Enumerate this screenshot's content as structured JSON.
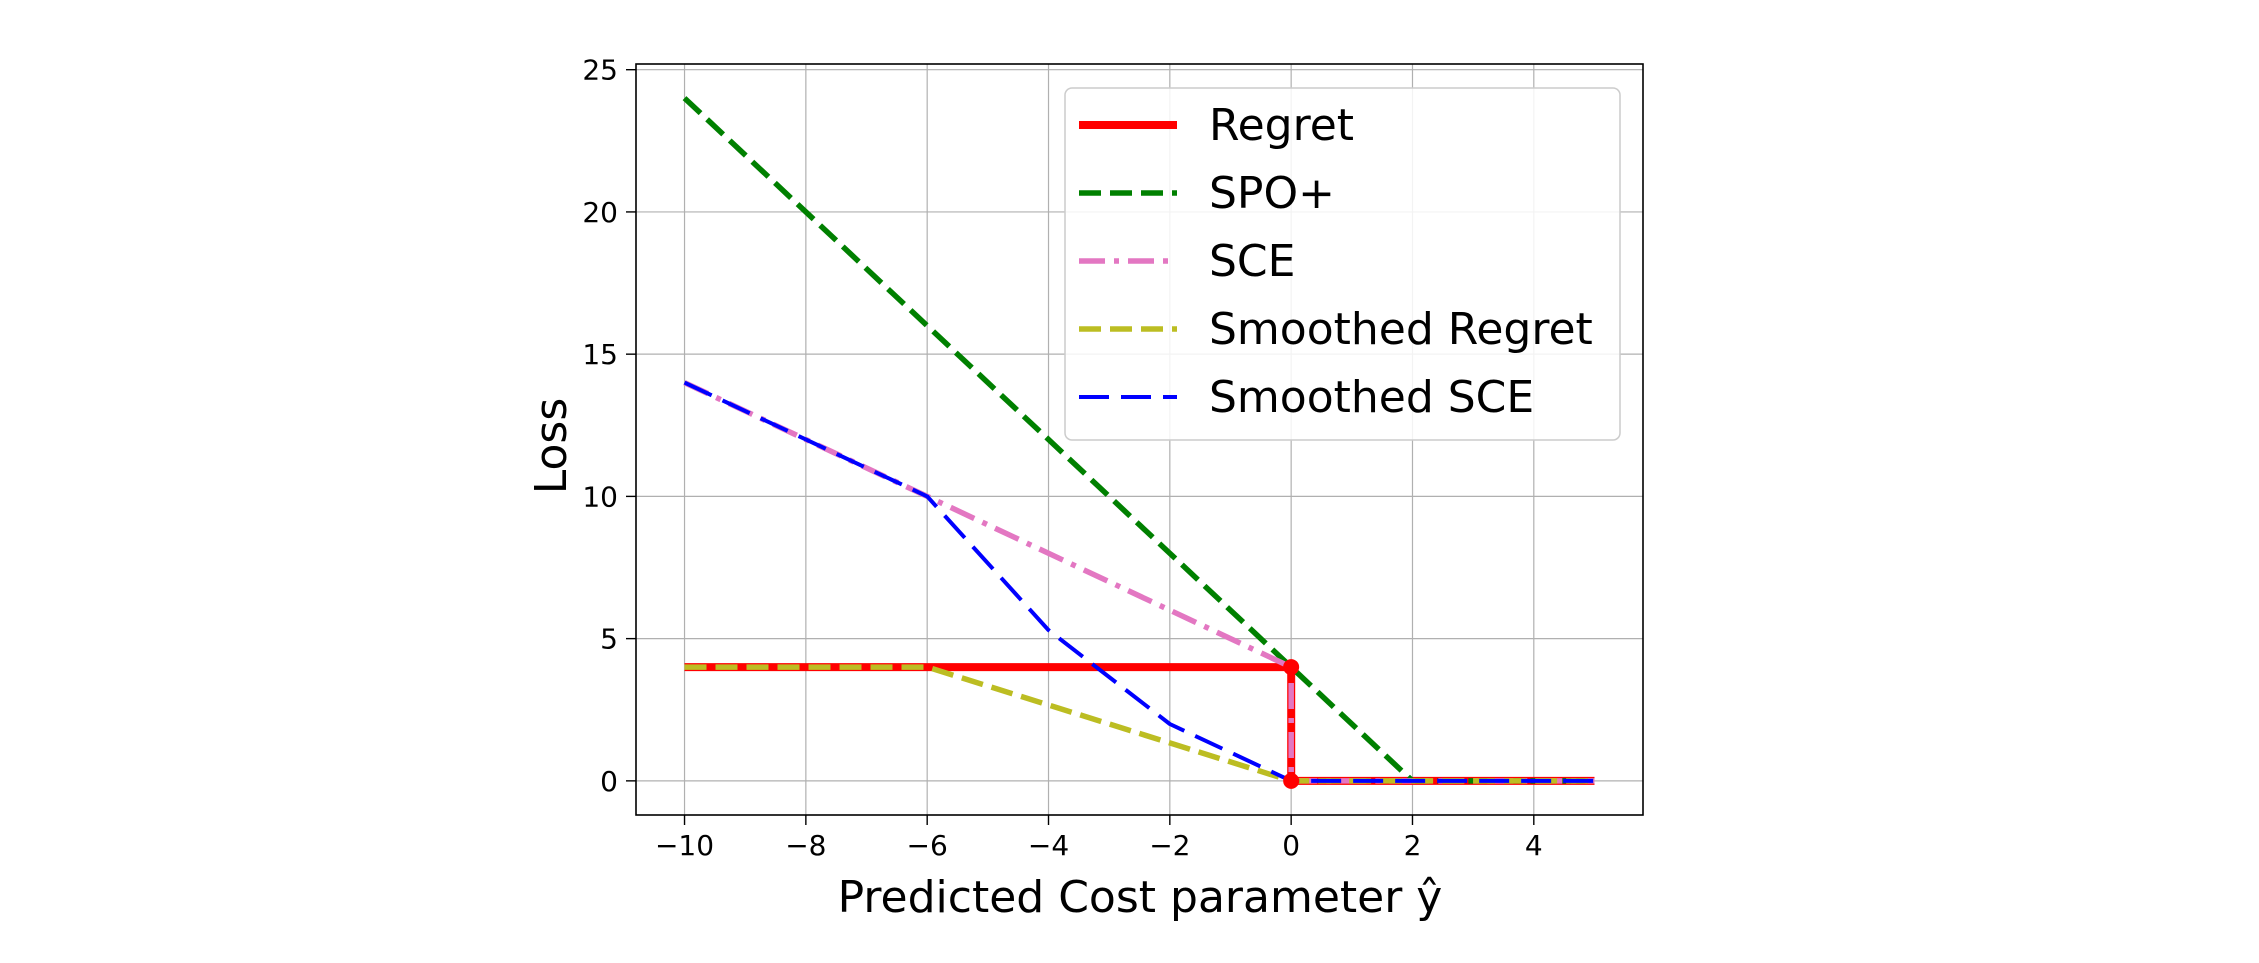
{
  "chart_data": {
    "type": "line",
    "xlabel": "Predicted Cost parameter ŷ",
    "ylabel": "Loss",
    "xlim": [
      -10.8,
      5.8
    ],
    "ylim": [
      -1.2,
      25.2
    ],
    "xticks": [
      -10,
      -8,
      -6,
      -4,
      -2,
      0,
      2,
      4
    ],
    "yticks": [
      0,
      5,
      10,
      15,
      20,
      25
    ],
    "x_tick_labels": [
      "−10",
      "−8",
      "−6",
      "−4",
      "−2",
      "0",
      "2",
      "4"
    ],
    "y_tick_labels": [
      "0",
      "5",
      "10",
      "15",
      "20",
      "25"
    ],
    "grid": true,
    "legend_position": "upper right",
    "series": [
      {
        "name": "Regret",
        "color": "#ff0000",
        "style": "solid",
        "x": [
          -10,
          0,
          0,
          5
        ],
        "y": [
          4,
          4,
          0,
          0
        ]
      },
      {
        "name": "SPO+",
        "color": "#008000",
        "style": "dashed",
        "x": [
          -10,
          2,
          5
        ],
        "y": [
          24,
          0,
          0
        ]
      },
      {
        "name": "SCE",
        "color": "#e377c2",
        "style": "dashdot",
        "x": [
          -10,
          -6,
          0,
          0,
          5
        ],
        "y": [
          14,
          10,
          4,
          0,
          0
        ]
      },
      {
        "name": "Smoothed Regret",
        "color": "#bcbd22",
        "style": "dashed",
        "x": [
          -10,
          -6,
          0,
          5
        ],
        "y": [
          4,
          4,
          0,
          0
        ]
      },
      {
        "name": "Smoothed SCE",
        "color": "#0000ff",
        "style": "longdash",
        "x": [
          -10,
          -6,
          -4,
          -2,
          0,
          5
        ],
        "y": [
          14,
          10,
          5.3,
          2,
          0,
          0
        ]
      }
    ],
    "markers": [
      {
        "x": 0,
        "y": 4,
        "color": "#ff0000"
      },
      {
        "x": 0,
        "y": 0,
        "color": "#ff0000"
      }
    ]
  }
}
